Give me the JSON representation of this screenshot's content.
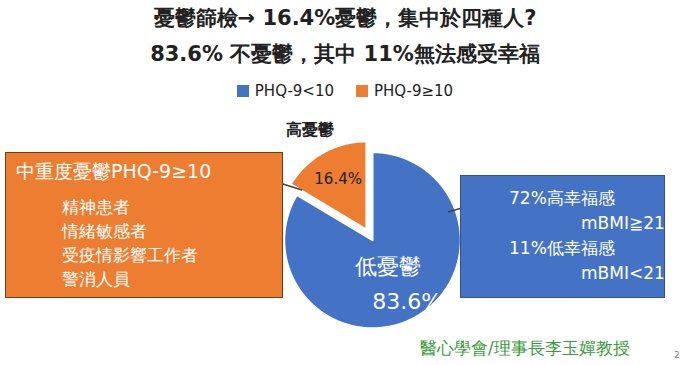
{
  "chart_data": {
    "type": "pie",
    "title": "憂鬱篩檢→ 16.4%憂鬱，集中於四種人?",
    "subtitle": "83.6% 不憂鬱，其中 11%無法感受幸福",
    "categories": [
      "PHQ-9<10",
      "PHQ-9≥10"
    ],
    "slice_labels": [
      "低憂鬱",
      "高憂鬱"
    ],
    "values": [
      83.6,
      16.4
    ],
    "value_labels": [
      "83.6%",
      "16.4%"
    ],
    "colors": [
      "#4472c4",
      "#ed7d31"
    ],
    "data_labels": true,
    "legend": "top",
    "annotations": [
      {
        "title": "中重度憂鬱PHQ-9≥10",
        "lines": [
          "精神患者",
          "情緒敏感者",
          "受疫情影響工作者",
          "警消人員"
        ]
      },
      {
        "lines": [
          "72%高幸福感",
          "mBMI≧21",
          "11%低幸福感",
          "mBMI<21"
        ]
      }
    ],
    "caption": "醫心學會/理事長李玉嬋教授",
    "page_number": 2
  }
}
